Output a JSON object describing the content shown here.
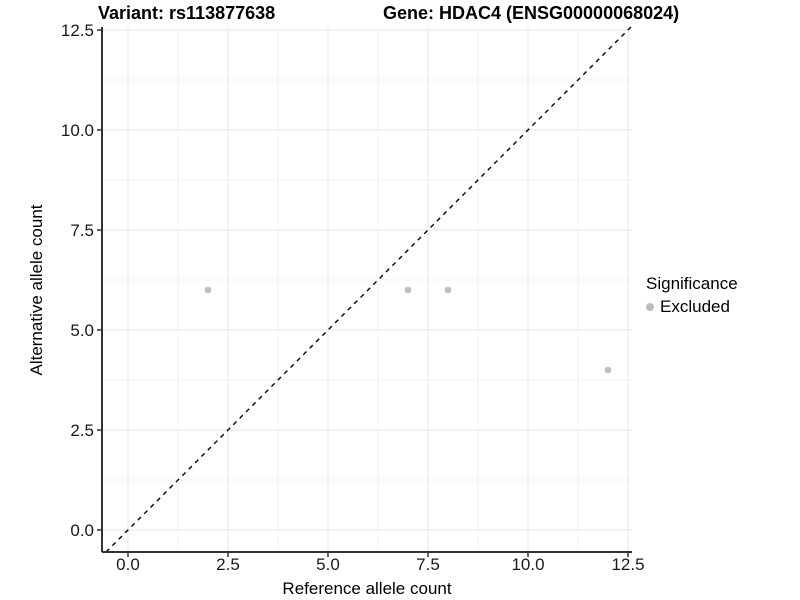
{
  "title": {
    "left": "Variant: rs113877638",
    "right": "Gene: HDAC4 (ENSG00000068024)"
  },
  "legend": {
    "title": "Significance",
    "items": [
      {
        "label": "Excluded",
        "color": "#bdbdbd"
      }
    ]
  },
  "chart_data": {
    "type": "scatter",
    "title": "Variant: rs113877638   Gene: HDAC4 (ENSG00000068024)",
    "xlabel": "Reference allele count",
    "ylabel": "Alternative allele count",
    "xlim": [
      -0.65,
      12.6
    ],
    "ylim": [
      -0.55,
      12.6
    ],
    "x_ticks": [
      0.0,
      2.5,
      5.0,
      7.5,
      10.0,
      12.5
    ],
    "x_tick_labels": [
      "0.0",
      "2.5",
      "5.0",
      "7.5",
      "10.0",
      "12.5"
    ],
    "y_ticks": [
      0.0,
      2.5,
      5.0,
      7.5,
      10.0,
      12.5
    ],
    "y_tick_labels": [
      "0.0",
      "2.5",
      "5.0",
      "7.5",
      "10.0",
      "12.5"
    ],
    "grid": "major+minor",
    "legend_position": "right",
    "series": [
      {
        "name": "Excluded",
        "color": "#bdbdbd",
        "points": [
          [
            2,
            6
          ],
          [
            7,
            6
          ],
          [
            8,
            6
          ],
          [
            12,
            4
          ]
        ]
      }
    ],
    "reference_line": {
      "slope": 1,
      "intercept": 0,
      "style": "dashed",
      "color": "#000000"
    }
  },
  "colors": {
    "point": "#bdbdbd",
    "grid_major": "#e6e6e6",
    "grid_minor": "#f2f2f2",
    "axis": "#333333",
    "tick_text": "#1a1a1a",
    "ref_line": "#000000"
  }
}
